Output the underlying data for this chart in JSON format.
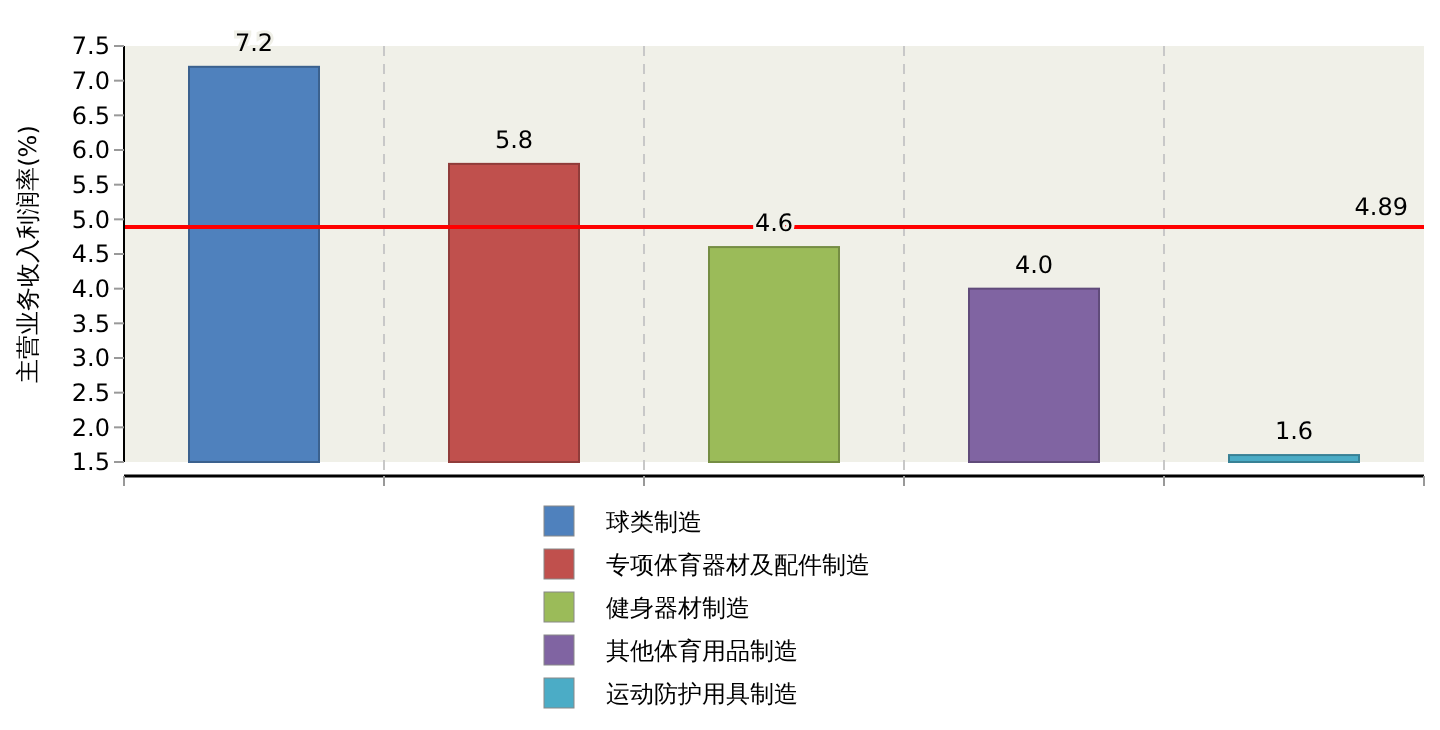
{
  "chart_data": {
    "type": "bar",
    "ylabel": "主营业务收入利润率(%)",
    "categories": [
      null,
      null,
      null,
      null,
      null
    ],
    "series": [
      {
        "name": "球类制造",
        "color": "#4f81bd",
        "values": [
          7.2,
          null,
          null,
          null,
          null
        ],
        "value_labels": [
          "7.2",
          null,
          null,
          null,
          null
        ]
      },
      {
        "name": "专项体育器材及配件制造",
        "color": "#c0504d",
        "values": [
          null,
          5.8,
          null,
          null,
          null
        ],
        "value_labels": [
          null,
          "5.8",
          null,
          null,
          null
        ]
      },
      {
        "name": "健身器材制造",
        "color": "#9bbb59",
        "values": [
          null,
          null,
          4.6,
          null,
          null
        ],
        "value_labels": [
          null,
          null,
          "4.6",
          null,
          null
        ]
      },
      {
        "name": "其他体育用品制造",
        "color": "#8064a2",
        "values": [
          null,
          null,
          null,
          4.0,
          null
        ],
        "value_labels": [
          null,
          null,
          null,
          "4.0",
          null
        ]
      },
      {
        "name": "运动防护用具制造",
        "color": "#4bacc6",
        "values": [
          null,
          null,
          null,
          null,
          1.6
        ],
        "value_labels": [
          null,
          null,
          null,
          null,
          "1.6"
        ]
      }
    ],
    "ylim": [
      1.5,
      7.5
    ],
    "yticks": [
      {
        "value": 1.5,
        "label": "1.5"
      },
      {
        "value": 2,
        "label": "2.0"
      },
      {
        "value": 2.5,
        "label": "2.5"
      },
      {
        "value": 3,
        "label": "3.0"
      },
      {
        "value": 3.5,
        "label": "3.5"
      },
      {
        "value": 4,
        "label": "4.0"
      },
      {
        "value": 4.5,
        "label": "4.5"
      },
      {
        "value": 5,
        "label": "5.0"
      },
      {
        "value": 5.5,
        "label": "5.5"
      },
      {
        "value": 6,
        "label": "6.0"
      },
      {
        "value": 6.5,
        "label": "6.5"
      },
      {
        "value": 7,
        "label": "7.0"
      },
      {
        "value": 7.5,
        "label": "7.5"
      }
    ],
    "ref_lines": [
      {
        "axis": "y",
        "value": 4.89,
        "label": "4.89",
        "color": "#ff0000"
      }
    ],
    "grid": "x",
    "legend": "bottom"
  }
}
